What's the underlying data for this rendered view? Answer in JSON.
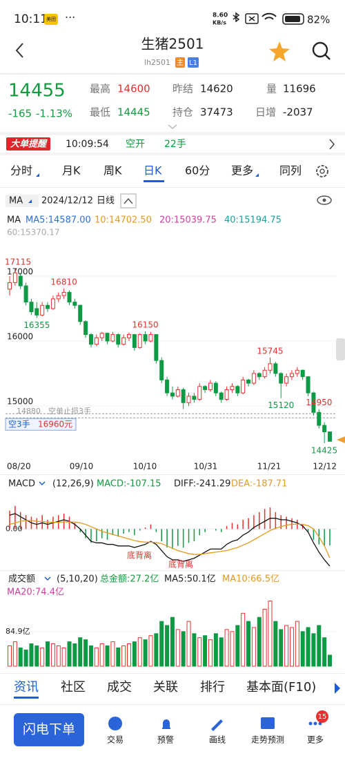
{
  "status_bar": {
    "time": "10:11",
    "app_badge": "美团",
    "dots": "···",
    "speed": "8.60",
    "speed_unit": "KB/s",
    "battery": "82%"
  },
  "header": {
    "title": "生猪2501",
    "code": "lh2501",
    "badge_main": "主",
    "badge_level": "L1"
  },
  "quote": {
    "price": "14455",
    "change": "-165",
    "change_pct": "-1.13%",
    "fields": [
      {
        "label": "最高",
        "value": "14600"
      },
      {
        "label": "昨结",
        "value": "14620"
      },
      {
        "label": "量",
        "value": "11696"
      },
      {
        "label": "最低",
        "value": "14445"
      },
      {
        "label": "持仓",
        "value": "37473"
      },
      {
        "label": "日增",
        "value": "-2037"
      }
    ]
  },
  "alert": {
    "badge": "大单提醒",
    "time": "10:09:54",
    "action": "空开",
    "lots": "22手"
  },
  "tabs": [
    "分时",
    "月K",
    "周K",
    "日K",
    "60分",
    "更多",
    "同列"
  ],
  "chart_bar": {
    "indicator": "MA",
    "date": "2024/12/12",
    "period": "日线"
  },
  "ma_legend": {
    "title": "MA",
    "ma5": "MA5:14587.00",
    "ma10": "10:14702.50",
    "ma20": "20:15039.75",
    "ma40": "40:15194.75",
    "ma60": "60:15370.17"
  },
  "chart_data": {
    "type": "candlestick",
    "ylim": [
      14180,
      17745
    ],
    "yticks": [
      17000,
      16000,
      15000
    ],
    "date_labels": [
      "08/20",
      "09/10",
      "10/10",
      "10/31",
      "11/21",
      "12/12"
    ],
    "candles": [
      [
        16800,
        17000,
        16700,
        16900
      ],
      [
        16900,
        17115,
        16850,
        17050
      ],
      [
        17000,
        17050,
        16800,
        16850
      ],
      [
        16850,
        16900,
        16550,
        16600
      ],
      [
        16600,
        16650,
        16400,
        16450
      ],
      [
        16500,
        16600,
        16355,
        16400
      ],
      [
        16400,
        16600,
        16380,
        16550
      ],
      [
        16550,
        16600,
        16450,
        16500
      ],
      [
        16500,
        16700,
        16480,
        16650
      ],
      [
        16650,
        16750,
        16600,
        16700
      ],
      [
        16700,
        16810,
        16650,
        16750
      ],
      [
        16750,
        16780,
        16550,
        16600
      ],
      [
        16600,
        16650,
        16500,
        16550
      ],
      [
        16550,
        16560,
        16250,
        16300
      ],
      [
        16300,
        16320,
        16050,
        16100
      ],
      [
        16100,
        16120,
        15900,
        15950
      ],
      [
        15950,
        16100,
        15920,
        16050
      ],
      [
        16050,
        16140,
        16000,
        16120
      ],
      [
        16120,
        16130,
        15950,
        16000
      ],
      [
        16000,
        16140,
        15980,
        16100
      ],
      [
        16100,
        16120,
        15900,
        15950
      ],
      [
        15950,
        16100,
        15930,
        16050
      ],
      [
        16050,
        16130,
        16000,
        16100
      ],
      [
        16100,
        16110,
        15850,
        15900
      ],
      [
        15900,
        16120,
        15880,
        16100
      ],
      [
        16100,
        16150,
        15950,
        16000
      ],
      [
        16000,
        16140,
        15980,
        16100
      ],
      [
        16100,
        16100,
        15650,
        15700
      ],
      [
        15700,
        15750,
        15350,
        15400
      ],
      [
        15400,
        15450,
        15150,
        15200
      ],
      [
        15200,
        15300,
        15100,
        15150
      ],
      [
        15150,
        15300,
        15130,
        15250
      ],
      [
        15250,
        15280,
        14950,
        15050
      ],
      [
        15050,
        15200,
        15000,
        15150
      ],
      [
        15150,
        15200,
        15050,
        15100
      ],
      [
        15100,
        15350,
        15080,
        15300
      ],
      [
        15300,
        15320,
        15200,
        15250
      ],
      [
        15250,
        15400,
        15220,
        15350
      ],
      [
        15350,
        15380,
        15150,
        15200
      ],
      [
        15200,
        15220,
        15050,
        15100
      ],
      [
        15100,
        15300,
        15080,
        15250
      ],
      [
        15250,
        15350,
        15200,
        15300
      ],
      [
        15300,
        15320,
        15150,
        15200
      ],
      [
        15200,
        15450,
        15180,
        15400
      ],
      [
        15400,
        15420,
        15300,
        15350
      ],
      [
        15350,
        15550,
        15320,
        15500
      ],
      [
        15500,
        15520,
        15400,
        15450
      ],
      [
        15450,
        15600,
        15420,
        15550
      ],
      [
        15550,
        15745,
        15500,
        15650
      ],
      [
        15650,
        15680,
        15450,
        15500
      ],
      [
        15500,
        15520,
        15120,
        15350
      ],
      [
        15350,
        15500,
        15300,
        15450
      ],
      [
        15450,
        15550,
        15400,
        15500
      ],
      [
        15500,
        15600,
        15450,
        15550
      ],
      [
        15550,
        15560,
        15400,
        15450
      ],
      [
        15450,
        15460,
        15150,
        15200
      ],
      [
        15200,
        15220,
        14850,
        14900
      ],
      [
        14900,
        14950,
        14650,
        14700
      ],
      [
        14700,
        14750,
        14425,
        14600
      ],
      [
        14600,
        14600,
        14445,
        14455
      ]
    ],
    "extreme_labels": [
      17115,
      16810,
      16355,
      16150,
      14950,
      15745,
      15120,
      14425
    ],
    "up_color": "#e8302c",
    "down_color": "#0e9a44",
    "stop_loss": {
      "price": 14880,
      "text": "空单止损3手"
    },
    "position": {
      "label": "空3手",
      "price": "16960元"
    }
  },
  "macd": {
    "title": "MACD",
    "params": "(12,26,9)",
    "macd": "MACD:-107.15",
    "diff": "DIFF:-241.29",
    "dea": "DEA:-187.71",
    "ylim": [
      -250,
      230
    ],
    "yticks": [
      {
        "value": 0,
        "label": "0.00"
      }
    ],
    "hist": [
      120,
      150,
      110,
      90,
      80,
      70,
      90,
      60,
      80,
      90,
      100,
      80,
      40,
      -20,
      -60,
      -90,
      -80,
      -60,
      -70,
      -40,
      -50,
      -30,
      -20,
      -40,
      -10,
      10,
      30,
      -20,
      -80,
      -120,
      -130,
      -110,
      -120,
      -90,
      -80,
      -40,
      -20,
      0,
      -10,
      -20,
      20,
      40,
      30,
      60,
      70,
      90,
      110,
      130,
      140,
      110,
      90,
      80,
      70,
      60,
      30,
      -20,
      -70,
      -100,
      -110,
      -107.15
    ],
    "diff_values": [
      90,
      100,
      80,
      60,
      40,
      30,
      40,
      30,
      40,
      50,
      60,
      50,
      30,
      0,
      -40,
      -80,
      -90,
      -90,
      -100,
      -100,
      -110,
      -110,
      -110,
      -120,
      -110,
      -100,
      -80,
      -100,
      -140,
      -180,
      -200,
      -200,
      -210,
      -200,
      -190,
      -170,
      -150,
      -130,
      -130,
      -130,
      -100,
      -80,
      -70,
      -40,
      -20,
      10,
      30,
      50,
      70,
      70,
      60,
      60,
      50,
      40,
      20,
      -20,
      -90,
      -150,
      -200,
      -241.29
    ],
    "dea_values": [
      30,
      40,
      50,
      55,
      55,
      50,
      48,
      45,
      43,
      44,
      46,
      47,
      45,
      40,
      30,
      15,
      0,
      -15,
      -25,
      -35,
      -45,
      -55,
      -65,
      -75,
      -82,
      -85,
      -85,
      -88,
      -95,
      -110,
      -125,
      -140,
      -150,
      -160,
      -165,
      -165,
      -160,
      -155,
      -150,
      -145,
      -140,
      -130,
      -120,
      -105,
      -90,
      -70,
      -50,
      -30,
      -10,
      5,
      15,
      25,
      30,
      32,
      30,
      22,
      0,
      -50,
      -110,
      -187.71
    ],
    "annotations": [
      "底背离",
      "底背离"
    ]
  },
  "volume": {
    "title": "成交额",
    "params": "(5,10,20)",
    "total": "总金额:27.2亿",
    "ma5": "MA5:50.1亿",
    "ma10": "MA10:66.5亿",
    "ma20": "MA20:74.4亿",
    "ylim": [
      0,
      161
    ],
    "yticks": [
      {
        "value": 84.9,
        "label": "84.9亿"
      }
    ],
    "values": [
      50,
      60,
      45,
      40,
      55,
      50,
      45,
      60,
      55,
      50,
      45,
      60,
      55,
      70,
      65,
      50,
      45,
      55,
      50,
      60,
      45,
      50,
      55,
      60,
      70,
      65,
      75,
      80,
      110,
      100,
      120,
      90,
      85,
      110,
      80,
      70,
      75,
      65,
      80,
      70,
      90,
      85,
      100,
      130,
      110,
      95,
      120,
      140,
      160,
      110,
      90,
      100,
      95,
      110,
      85,
      95,
      80,
      100,
      70,
      27.2
    ]
  },
  "bottom_tabs": [
    "资讯",
    "社区",
    "成交",
    "关联",
    "排行",
    "基本面(F10)"
  ],
  "nav": {
    "button": "闪电下单",
    "items": [
      "交易",
      "预警",
      "画线",
      "走势预测",
      "更多"
    ],
    "badge": "15"
  }
}
